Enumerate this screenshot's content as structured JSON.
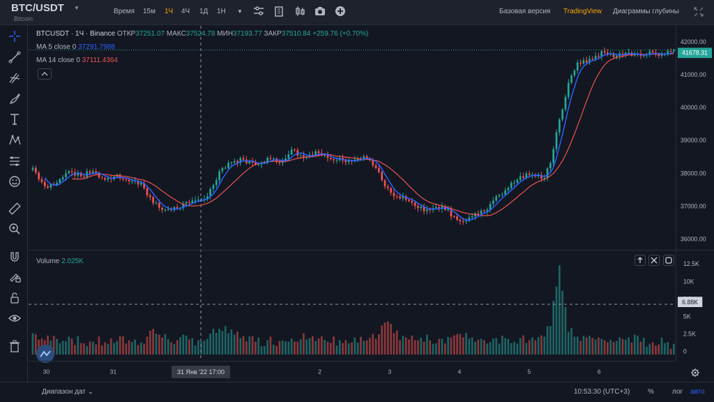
{
  "topbar": {
    "symbol": "BTC/USDT",
    "symbol_sub": "Bitcoin",
    "time_label": "Время",
    "intervals": [
      "15м",
      "1Ч",
      "4Ч",
      "1Д",
      "1Н"
    ],
    "active_interval": "1Ч",
    "links": {
      "basic": "Базовая версия",
      "tradingview": "TradingView",
      "depth": "Диаграммы глубины"
    },
    "icons": [
      "chevron-down-icon",
      "indicators-icon",
      "building-icon",
      "candles-icon",
      "camera-icon",
      "plus-circle-icon",
      "fullscreen-icon"
    ]
  },
  "left_toolbar": {
    "icons": [
      "crosshair-icon",
      "trend-line-icon",
      "fib-icon",
      "brush-icon",
      "text-icon",
      "pattern-icon",
      "measure-icon",
      "emoji-icon",
      "ruler-icon",
      "zoom-in-icon",
      "magnet-icon",
      "lock-drawing-icon",
      "unlock-icon",
      "eye-icon",
      "trash-icon"
    ]
  },
  "legend": {
    "title": "BTCUSDT · 1Ч · Binance",
    "open_label": "ОТКР",
    "open": "37251.07",
    "high_label": "МАКС",
    "high": "37524.78",
    "low_label": "МИН",
    "low": "37193.77",
    "close_label": "ЗАКР",
    "close": "37510.84",
    "change": "+259.76 (+0.70%)",
    "ma5_label": "MA 5 close 0",
    "ma5_value": "37291.7988",
    "ma14_label": "MA 14 close 0",
    "ma14_value": "37111.4364",
    "volume_label": "Volume",
    "volume_value": "2.025K"
  },
  "colors": {
    "up": "#26a69a",
    "down": "#ef5350",
    "ma5": "#2962ff",
    "ma14": "#ef5350",
    "accent": "#f7a600"
  },
  "price_scale": {
    "ticks": [
      "42000.00",
      "41000.00",
      "40000.00",
      "39000.00",
      "38000.00",
      "37000.00",
      "36000.00"
    ],
    "current_price": "41678.31"
  },
  "volume_scale": {
    "ticks": [
      "12.5K",
      "10K",
      "7.5K",
      "5K",
      "2.5K",
      "0"
    ],
    "cursor_value": "6.88K"
  },
  "time_axis": {
    "ticks": [
      "30",
      "31",
      "2",
      "3",
      "4",
      "5",
      "6"
    ],
    "cursor_label": "31 Янв '22   17:00"
  },
  "bottombar": {
    "range_label": "Диапазон дат",
    "clock": "10:53:30 (UTC+3)",
    "pct": "%",
    "log": "лог",
    "auto": "авто"
  },
  "chart_data": {
    "type": "candlestick",
    "symbol": "BTCUSDT",
    "interval": "1Ч",
    "ylim": [
      35700,
      42400
    ],
    "volume_ylim": [
      0,
      13000
    ],
    "anchors": [
      [
        0,
        38150,
        3.0
      ],
      [
        4,
        37600,
        2.0
      ],
      [
        8,
        37700,
        2.2
      ],
      [
        12,
        38050,
        2.5
      ],
      [
        16,
        37900,
        1.6
      ],
      [
        20,
        38050,
        1.8
      ],
      [
        24,
        37800,
        1.7
      ],
      [
        28,
        37950,
        1.9
      ],
      [
        32,
        37750,
        2.0
      ],
      [
        36,
        37700,
        1.7
      ],
      [
        40,
        37100,
        3.6
      ],
      [
        43,
        36900,
        2.4
      ],
      [
        48,
        36950,
        2.0
      ],
      [
        52,
        37100,
        2.1
      ],
      [
        55,
        37200,
        2.0
      ],
      [
        58,
        37300,
        2.2
      ],
      [
        62,
        38050,
        3.6
      ],
      [
        65,
        38300,
        3.0
      ],
      [
        70,
        38400,
        2.6
      ],
      [
        74,
        38250,
        1.8
      ],
      [
        78,
        38450,
        2.0
      ],
      [
        82,
        38300,
        1.9
      ],
      [
        86,
        38700,
        2.2
      ],
      [
        90,
        38450,
        3.0
      ],
      [
        94,
        38650,
        1.9
      ],
      [
        98,
        38450,
        1.8
      ],
      [
        102,
        38450,
        2.0
      ],
      [
        106,
        38350,
        1.7
      ],
      [
        110,
        38500,
        1.9
      ],
      [
        114,
        38150,
        2.2
      ],
      [
        117,
        37600,
        4.5
      ],
      [
        120,
        37300,
        3.0
      ],
      [
        124,
        37200,
        2.4
      ],
      [
        128,
        36950,
        2.0
      ],
      [
        132,
        36900,
        2.0
      ],
      [
        136,
        37000,
        2.2
      ],
      [
        140,
        36700,
        2.7
      ],
      [
        143,
        36550,
        2.4
      ],
      [
        146,
        36700,
        2.4
      ],
      [
        150,
        36850,
        2.0
      ],
      [
        154,
        37300,
        2.3
      ],
      [
        158,
        37550,
        2.2
      ],
      [
        162,
        37900,
        2.3
      ],
      [
        166,
        37950,
        2.4
      ],
      [
        170,
        37850,
        2.5
      ],
      [
        172,
        38300,
        4.0
      ],
      [
        175,
        39600,
        12.5
      ],
      [
        178,
        40700,
        3.2
      ],
      [
        181,
        41300,
        2.5
      ],
      [
        184,
        41300,
        2.4
      ],
      [
        187,
        41500,
        2.1
      ],
      [
        190,
        41600,
        2.0
      ],
      [
        194,
        41500,
        1.9
      ],
      [
        198,
        41600,
        2.4
      ],
      [
        202,
        41500,
        1.8
      ],
      [
        206,
        41600,
        1.7
      ],
      [
        210,
        41550,
        1.6
      ],
      [
        213,
        41680,
        1.5
      ]
    ],
    "ma_periods": [
      5,
      14
    ],
    "volume_unit": "K"
  }
}
